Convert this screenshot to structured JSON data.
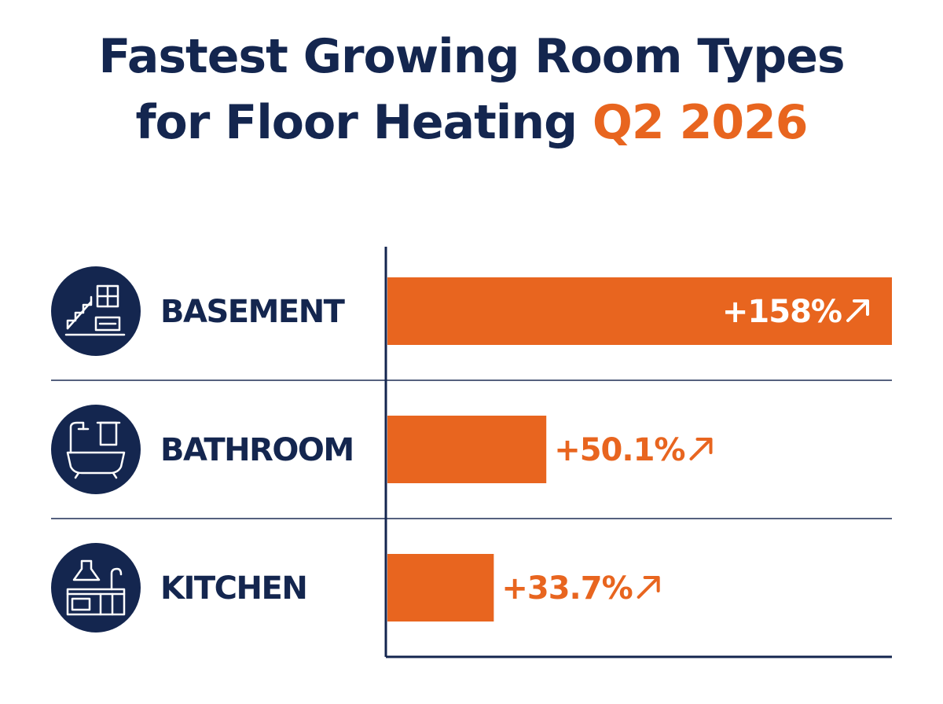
{
  "title": {
    "line1": "Fastest Growing Room Types",
    "line2_main": "for Floor Heating ",
    "line2_accent": "Q2 2026"
  },
  "colors": {
    "navy": "#14264f",
    "orange": "#e8651f",
    "divider": "#1f2d55"
  },
  "chart_data": {
    "type": "bar",
    "orientation": "horizontal",
    "title": "Fastest Growing Room Types for Floor Heating Q2 2026",
    "categories": [
      "BASEMENT",
      "BATHROOM",
      "KITCHEN"
    ],
    "values": [
      158,
      50.1,
      33.7
    ],
    "value_labels": [
      "+158%",
      "+50.1%",
      "+33.7%"
    ],
    "icons": [
      "basement-icon",
      "bathtub-icon",
      "kitchen-icon"
    ],
    "trend_icon": "arrow-up-right-icon",
    "xlim": [
      0,
      158
    ],
    "grid": false,
    "legend": "none"
  }
}
